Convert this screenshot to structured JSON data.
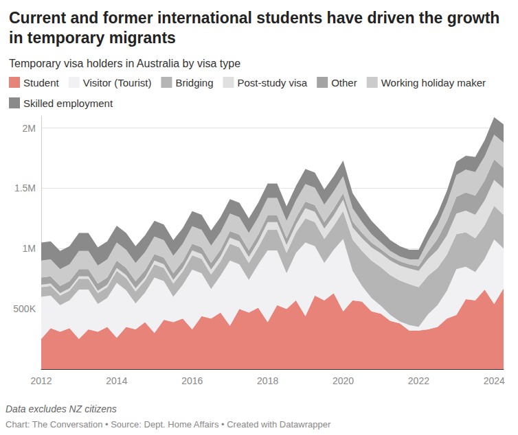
{
  "chart_data": {
    "type": "area",
    "title": "Current and former international students have driven the growth in temporary migrants",
    "subtitle": "Temporary visa holders in Australia by visa type",
    "notes": [
      "Data excludes NZ citizens",
      "Chart: The Conversation • Source: Dept. Home Affairs • Created with Datawrapper"
    ],
    "stacked": true,
    "grid": true,
    "legend": "top-left",
    "categories": [
      "2012",
      null,
      null,
      null,
      null,
      null,
      null,
      null,
      "2014",
      null,
      null,
      null,
      null,
      null,
      null,
      null,
      "2016",
      null,
      null,
      null,
      null,
      null,
      null,
      null,
      "2018",
      null,
      null,
      null,
      null,
      null,
      null,
      null,
      "2020",
      null,
      null,
      null,
      null,
      null,
      null,
      null,
      "2022",
      null,
      null,
      null,
      null,
      null,
      null,
      null,
      "2024",
      null
    ],
    "ylim": [
      0,
      2100000
    ],
    "yticks": [
      {
        "value": 500000,
        "label": "500K"
      },
      {
        "value": 1000000,
        "label": "1M"
      },
      {
        "value": 1500000,
        "label": "1.5M"
      },
      {
        "value": 2000000,
        "label": "2M"
      }
    ],
    "series": [
      {
        "name": "Student",
        "color": "#e8837a",
        "values": [
          250000,
          340000,
          310000,
          340000,
          250000,
          330000,
          310000,
          350000,
          260000,
          350000,
          330000,
          390000,
          300000,
          410000,
          390000,
          420000,
          330000,
          440000,
          420000,
          470000,
          360000,
          500000,
          470000,
          510000,
          390000,
          530000,
          500000,
          570000,
          440000,
          610000,
          570000,
          630000,
          480000,
          570000,
          560000,
          480000,
          460000,
          400000,
          380000,
          320000,
          320000,
          330000,
          350000,
          420000,
          450000,
          580000,
          570000,
          660000,
          540000,
          670000
        ]
      },
      {
        "name": "Visitor (Tourist)",
        "color": "#f1f1f4",
        "values": [
          350000,
          270000,
          220000,
          230000,
          410000,
          330000,
          230000,
          240000,
          455000,
          305000,
          215000,
          245000,
          460000,
          320000,
          210000,
          280000,
          495000,
          355000,
          245000,
          305000,
          540000,
          370000,
          270000,
          360000,
          595000,
          455000,
          295000,
          395000,
          610000,
          410000,
          310000,
          360000,
          600000,
          245000,
          130000,
          110000,
          65000,
          50000,
          15000,
          45000,
          30000,
          125000,
          180000,
          230000,
          380000,
          270000,
          235000,
          255000,
          535000,
          330000
        ]
      },
      {
        "name": "Bridging",
        "color": "#b5b5b5",
        "values": [
          80000,
          80000,
          80000,
          80000,
          90000,
          90000,
          90000,
          90000,
          100000,
          100000,
          100000,
          100000,
          110000,
          110000,
          110000,
          110000,
          120000,
          120000,
          120000,
          120000,
          140000,
          140000,
          140000,
          140000,
          170000,
          170000,
          170000,
          170000,
          200000,
          200000,
          200000,
          200000,
          230000,
          260000,
          290000,
          310000,
          320000,
          330000,
          340000,
          340000,
          330000,
          320000,
          310000,
          300000,
          290000,
          285000,
          280000,
          280000,
          280000,
          280000
        ]
      },
      {
        "name": "Post-study visa",
        "color": "#e0e0e0",
        "values": [
          20000,
          20000,
          20000,
          20000,
          20000,
          20000,
          20000,
          20000,
          25000,
          25000,
          25000,
          25000,
          30000,
          30000,
          30000,
          30000,
          40000,
          40000,
          40000,
          40000,
          50000,
          50000,
          50000,
          50000,
          65000,
          65000,
          65000,
          65000,
          85000,
          85000,
          85000,
          85000,
          95000,
          100000,
          105000,
          110000,
          115000,
          120000,
          125000,
          130000,
          135000,
          140000,
          150000,
          160000,
          170000,
          180000,
          195000,
          205000,
          215000,
          220000
        ]
      },
      {
        "name": "Other",
        "color": "#a3a3a3",
        "values": [
          60000,
          60000,
          60000,
          60000,
          60000,
          60000,
          60000,
          60000,
          60000,
          60000,
          60000,
          60000,
          55000,
          55000,
          55000,
          55000,
          55000,
          55000,
          55000,
          55000,
          55000,
          55000,
          55000,
          55000,
          55000,
          55000,
          55000,
          55000,
          55000,
          55000,
          55000,
          55000,
          55000,
          50000,
          45000,
          40000,
          35000,
          35000,
          35000,
          35000,
          40000,
          60000,
          90000,
          120000,
          140000,
          150000,
          160000,
          165000,
          170000,
          170000
        ]
      },
      {
        "name": "Working holiday maker",
        "color": "#cbcbcb",
        "values": [
          140000,
          140000,
          140000,
          140000,
          150000,
          150000,
          150000,
          150000,
          150000,
          150000,
          150000,
          150000,
          145000,
          145000,
          145000,
          145000,
          145000,
          145000,
          145000,
          145000,
          145000,
          145000,
          145000,
          145000,
          145000,
          145000,
          145000,
          145000,
          145000,
          145000,
          145000,
          145000,
          140000,
          110000,
          90000,
          70000,
          55000,
          45000,
          40000,
          40000,
          55000,
          90000,
          120000,
          150000,
          180000,
          190000,
          195000,
          200000,
          205000,
          210000
        ]
      },
      {
        "name": "Skilled employment",
        "color": "#8a8a8a",
        "values": [
          150000,
          150000,
          150000,
          150000,
          150000,
          150000,
          150000,
          150000,
          140000,
          140000,
          140000,
          140000,
          130000,
          130000,
          130000,
          130000,
          125000,
          125000,
          125000,
          125000,
          120000,
          120000,
          120000,
          120000,
          120000,
          120000,
          120000,
          120000,
          125000,
          125000,
          125000,
          125000,
          130000,
          125000,
          120000,
          110000,
          100000,
          90000,
          85000,
          80000,
          80000,
          85000,
          90000,
          100000,
          110000,
          115000,
          125000,
          135000,
          145000,
          150000
        ]
      }
    ]
  }
}
